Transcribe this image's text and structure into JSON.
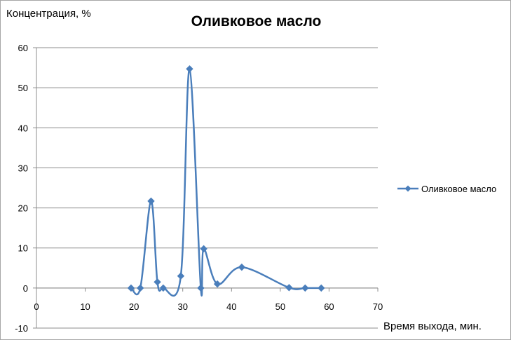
{
  "chart_data": {
    "type": "line",
    "title": "Оливковое масло",
    "ylabel": "Концентрация, %",
    "xlabel": "Время выхода, мин.",
    "xlim": [
      0,
      70
    ],
    "ylim": [
      -10,
      60
    ],
    "xticks": [
      0,
      10,
      20,
      30,
      40,
      50,
      60,
      70
    ],
    "yticks": [
      -10,
      0,
      10,
      20,
      30,
      40,
      50,
      60
    ],
    "grid": "horizontal",
    "legend_position": "right",
    "smooth": true,
    "series": [
      {
        "name": "Оливковое масло",
        "color": "#4a7ebb",
        "marker": "diamond",
        "x": [
          19.4,
          21.3,
          23.5,
          24.8,
          26.0,
          29.6,
          31.4,
          33.7,
          34.3,
          37.1,
          42.1,
          51.8,
          55.1,
          58.4
        ],
        "y": [
          0,
          0,
          21.7,
          1.5,
          0,
          3.0,
          54.7,
          0,
          9.8,
          1.0,
          5.2,
          0.1,
          0,
          0
        ]
      }
    ]
  }
}
